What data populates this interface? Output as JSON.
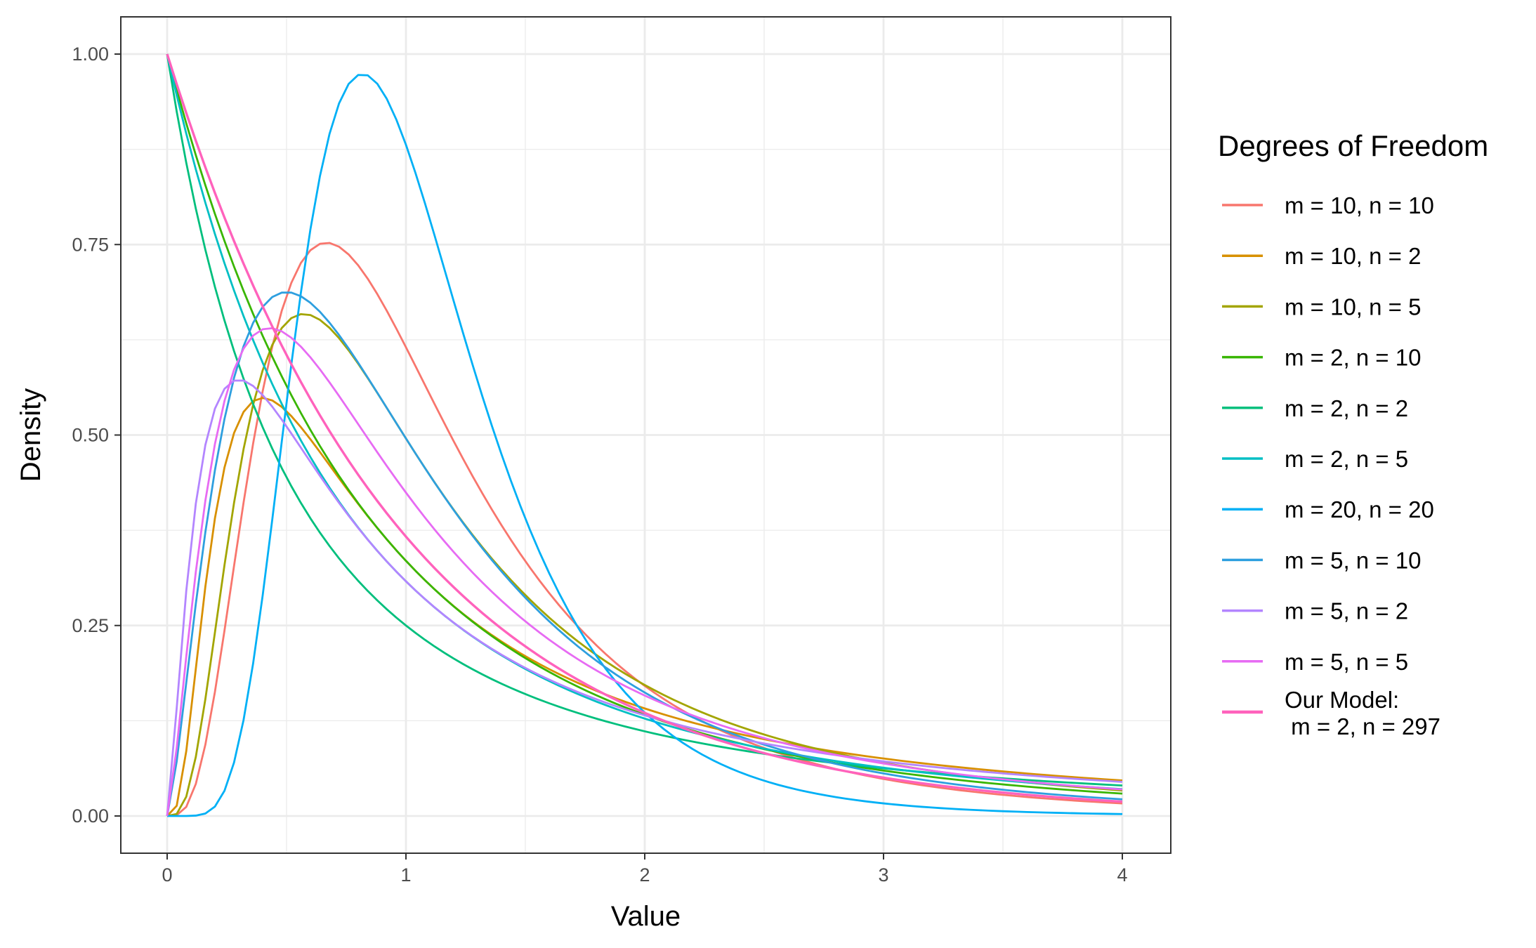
{
  "chart_data": {
    "type": "line",
    "title": "",
    "xlabel": "Value",
    "ylabel": "Density",
    "xlim": [
      0,
      4
    ],
    "ylim": [
      0,
      1
    ],
    "x_ticks": [
      "0",
      "1",
      "2",
      "3",
      "4"
    ],
    "y_ticks": [
      "0.00",
      "0.25",
      "0.50",
      "0.75",
      "1.00"
    ],
    "grid": true,
    "legend_title": "Degrees of Freedom",
    "legend_position": "right",
    "series": [
      {
        "name": "m = 10, n = 10",
        "m": 10,
        "n": 10,
        "color": "#F8766D"
      },
      {
        "name": "m = 10, n = 2",
        "m": 10,
        "n": 2,
        "color": "#D89000"
      },
      {
        "name": "m = 10, n = 5",
        "m": 10,
        "n": 5,
        "color": "#A3A500"
      },
      {
        "name": "m = 2, n = 10",
        "m": 2,
        "n": 10,
        "color": "#39B600"
      },
      {
        "name": "m = 2, n = 2",
        "m": 2,
        "n": 2,
        "color": "#00BF7D"
      },
      {
        "name": "m = 2, n = 5",
        "m": 2,
        "n": 5,
        "color": "#00BFC4"
      },
      {
        "name": "m = 20, n = 20",
        "m": 20,
        "n": 20,
        "color": "#00B0F6"
      },
      {
        "name": "m = 5, n = 10",
        "m": 5,
        "n": 10,
        "color": "#2E9FDF"
      },
      {
        "name": "m = 5, n = 2",
        "m": 5,
        "n": 2,
        "color": "#B385FF"
      },
      {
        "name": "m = 5, n = 5",
        "m": 5,
        "n": 5,
        "color": "#E76BF3"
      },
      {
        "name_lines": [
          "Our Model:",
          " m = 2, n = 297"
        ],
        "m": 2,
        "n": 297,
        "color": "#FF62BC",
        "bold": true
      }
    ]
  }
}
